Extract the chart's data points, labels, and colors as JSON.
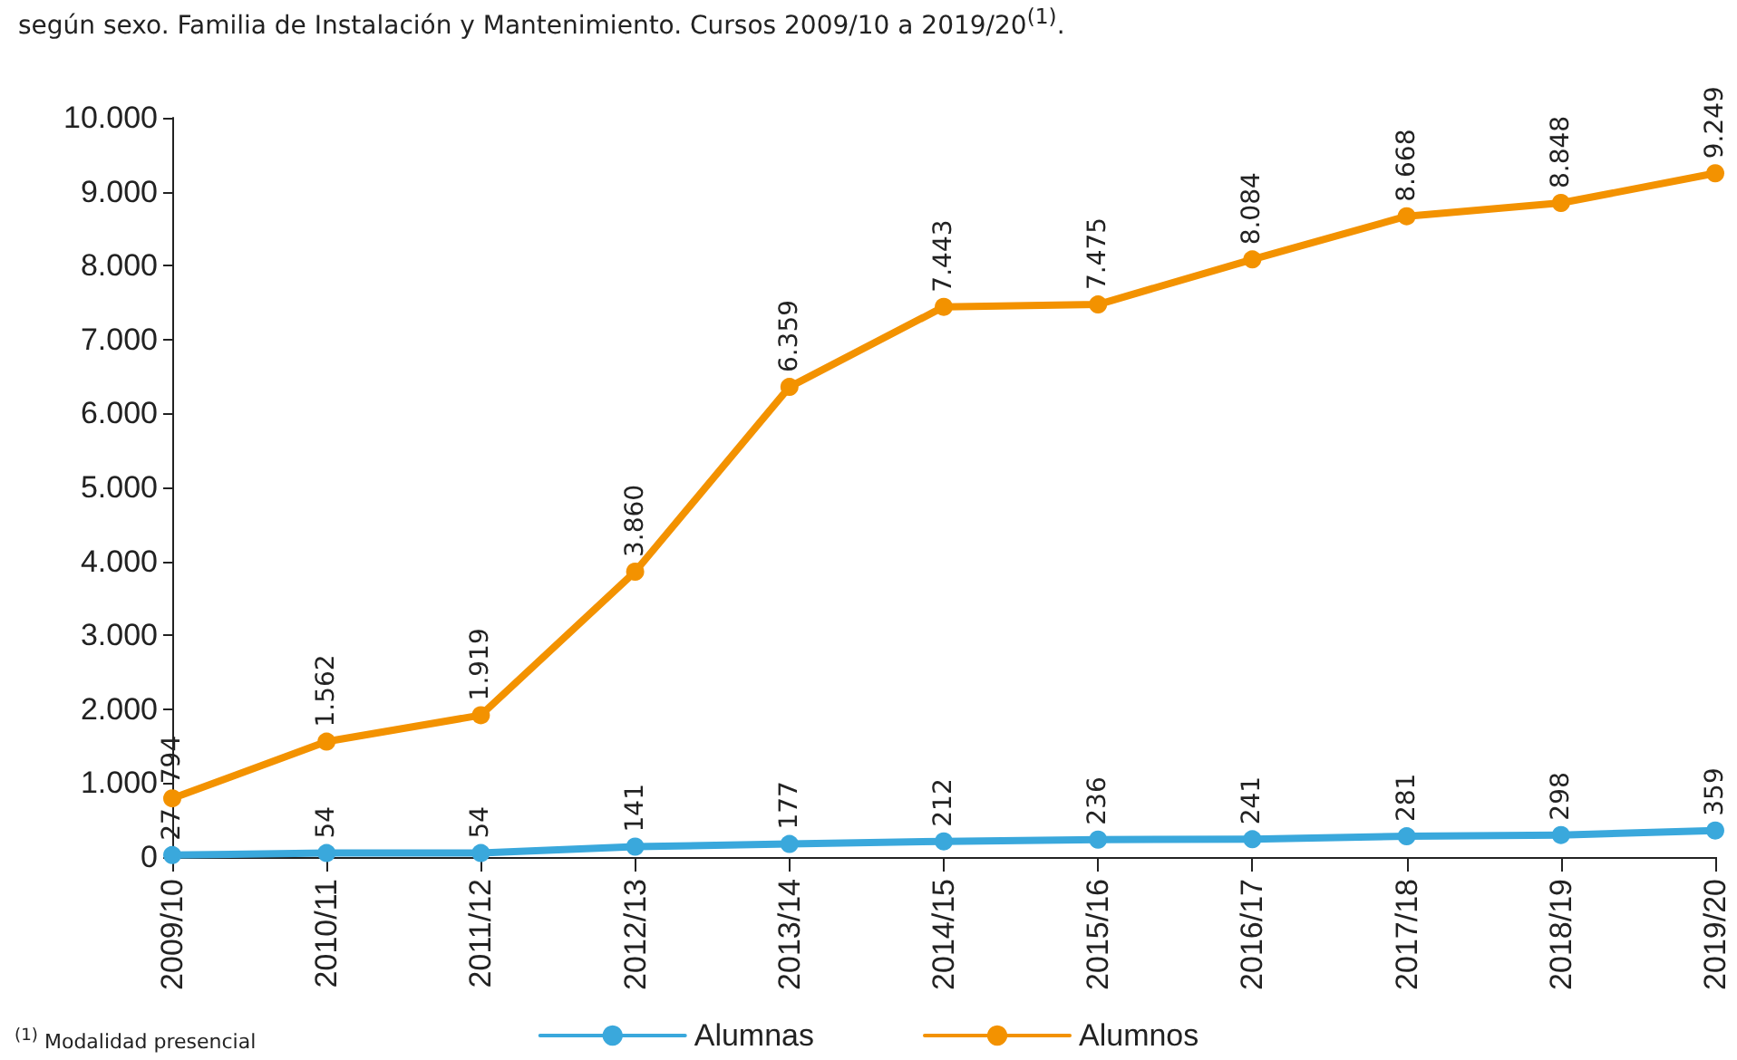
{
  "chart_data": {
    "type": "line",
    "title": "según sexo. Familia de Instalación y Mantenimiento. Cursos 2009/10 a 2019/20$^{(1)}$.",
    "categories": [
      "2009/10",
      "2010/11",
      "2011/12",
      "2012/13",
      "2013/14",
      "2014/15",
      "2015/16",
      "2016/17",
      "2017/18",
      "2018/19",
      "2019/20"
    ],
    "series": [
      {
        "name": "Alumnas",
        "color": "#3aa8dc",
        "values": [
          27,
          54,
          54,
          141,
          177,
          212,
          236,
          241,
          281,
          298,
          359
        ],
        "value_labels": [
          "27",
          "54",
          "54",
          "141",
          "177",
          "212",
          "236",
          "241",
          "281",
          "298",
          "359"
        ]
      },
      {
        "name": "Alumnos",
        "color": "#f39200",
        "values": [
          794,
          1562,
          1919,
          3860,
          6359,
          7443,
          7475,
          8084,
          8668,
          8848,
          9249
        ],
        "value_labels": [
          "794",
          "1.562",
          "1.919",
          "3.860",
          "6.359",
          "7.443",
          "7.475",
          "8.084",
          "8.668",
          "8.848",
          "9.249"
        ]
      }
    ],
    "ylim": [
      0,
      10000
    ],
    "yticks": [
      {
        "value": 0,
        "label": "0"
      },
      {
        "value": 1000,
        "label": "1.000"
      },
      {
        "value": 2000,
        "label": "2.000"
      },
      {
        "value": 3000,
        "label": "3.000"
      },
      {
        "value": 4000,
        "label": "4.000"
      },
      {
        "value": 5000,
        "label": "5.000"
      },
      {
        "value": 6000,
        "label": "6.000"
      },
      {
        "value": 7000,
        "label": "7.000"
      },
      {
        "value": 8000,
        "label": "8.000"
      },
      {
        "value": 9000,
        "label": "9.000"
      },
      {
        "value": 10000,
        "label": "10.000"
      }
    ],
    "grid": false,
    "legend": "bottom",
    "marker": "circle",
    "line_style": "solid",
    "annotations": [
      "$^{(1)}$ Modalidad presencial"
    ]
  }
}
